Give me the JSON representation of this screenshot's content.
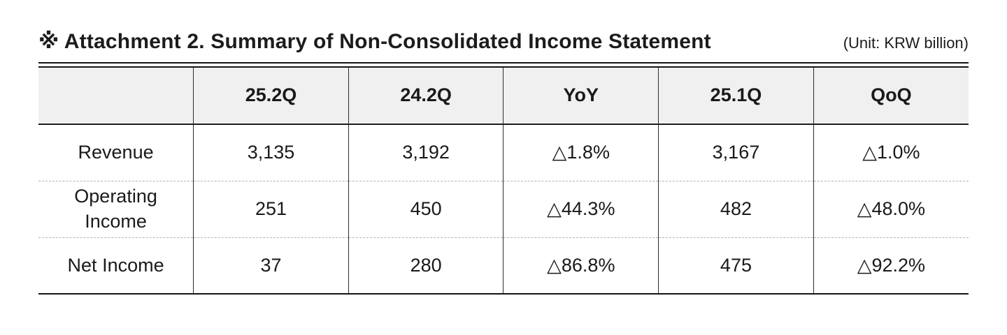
{
  "page": {
    "title": "※ Attachment 2. Summary of Non-Consolidated Income Statement",
    "unit": "(Unit: KRW billion)"
  },
  "table": {
    "columns": [
      "",
      "25.2Q",
      "24.2Q",
      "YoY",
      "25.1Q",
      "QoQ"
    ],
    "rows": [
      {
        "label": "Revenue",
        "values": [
          "3,135",
          "3,192",
          "△1.8%",
          "3,167",
          "△1.0%"
        ]
      },
      {
        "label": "Operating Income",
        "values": [
          "251",
          "450",
          "△44.3%",
          "482",
          "△48.0%"
        ]
      },
      {
        "label": "Net Income",
        "values": [
          "37",
          "280",
          "△86.8%",
          "475",
          "△92.2%"
        ]
      }
    ]
  },
  "colors": {
    "header_background": "#f0f0f0",
    "text": "#1a1a1a",
    "solid_rule": "#141414",
    "dashed_rule": "#b3b3b3"
  }
}
